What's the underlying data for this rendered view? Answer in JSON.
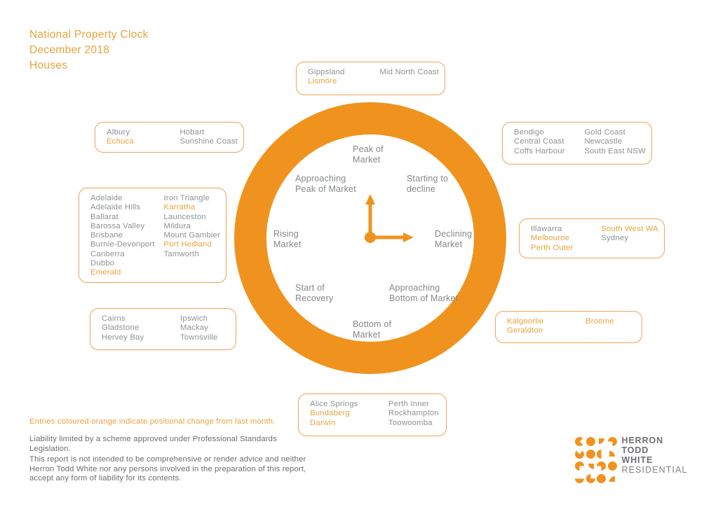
{
  "header": {
    "title": "National Property Clock",
    "subtitle": "December 2018",
    "category": "Houses"
  },
  "clock": {
    "stages": [
      {
        "id": "peak-of-market",
        "label": "Peak of\nMarket"
      },
      {
        "id": "starting-to-decline",
        "label": "Starting to\ndecline"
      },
      {
        "id": "declining-market",
        "label": "Declining\nMarket"
      },
      {
        "id": "approaching-bottom-of-market",
        "label": "Approaching\nBottom of Market"
      },
      {
        "id": "bottom-of-market",
        "label": "Bottom of\nMarket"
      },
      {
        "id": "start-of-recovery",
        "label": "Start of\nRecovery"
      },
      {
        "id": "rising-market",
        "label": "Rising\nMarket"
      },
      {
        "id": "approaching-peak-of-market",
        "label": "Approaching\nPeak of Market"
      }
    ]
  },
  "boxes": [
    {
      "stage": "peak-of-market",
      "columns": [
        [
          {
            "name": "Gippsland",
            "changed": false
          },
          {
            "name": "Lismore",
            "changed": true
          }
        ],
        [
          {
            "name": "Mid North Coast",
            "changed": false
          }
        ]
      ]
    },
    {
      "stage": "approaching-peak-of-market",
      "columns": [
        [
          {
            "name": "Albury",
            "changed": false
          },
          {
            "name": "Echuca",
            "changed": true
          }
        ],
        [
          {
            "name": "Hobart",
            "changed": false
          },
          {
            "name": "Sunshine Coast",
            "changed": false
          }
        ]
      ]
    },
    {
      "stage": "rising-market",
      "columns": [
        [
          {
            "name": "Adelaide",
            "changed": false
          },
          {
            "name": "Adelaide Hills",
            "changed": false
          },
          {
            "name": "Ballarat",
            "changed": false
          },
          {
            "name": "Barossa Valley",
            "changed": false
          },
          {
            "name": "Brisbane",
            "changed": false
          },
          {
            "name": "Burnie-Devonport",
            "changed": false
          },
          {
            "name": "Canberra",
            "changed": false
          },
          {
            "name": "Dubbo",
            "changed": false
          },
          {
            "name": "Emerald",
            "changed": true
          }
        ],
        [
          {
            "name": "Iron Triangle",
            "changed": false
          },
          {
            "name": "Karratha",
            "changed": true
          },
          {
            "name": "Launceston",
            "changed": false
          },
          {
            "name": "Mildura",
            "changed": false
          },
          {
            "name": "Mount Gambier",
            "changed": false
          },
          {
            "name": "Port Hedland",
            "changed": true
          },
          {
            "name": "Tamworth",
            "changed": false
          }
        ]
      ]
    },
    {
      "stage": "start-of-recovery",
      "columns": [
        [
          {
            "name": "Cairns",
            "changed": false
          },
          {
            "name": "Gladstone",
            "changed": false
          },
          {
            "name": "Hervey Bay",
            "changed": false
          }
        ],
        [
          {
            "name": "Ipswich",
            "changed": false
          },
          {
            "name": "Mackay",
            "changed": false
          },
          {
            "name": "Townsville",
            "changed": false
          }
        ]
      ]
    },
    {
      "stage": "starting-to-decline",
      "columns": [
        [
          {
            "name": "Bendigo",
            "changed": false
          },
          {
            "name": "Central Coast",
            "changed": false
          },
          {
            "name": "Coffs Harbour",
            "changed": false
          }
        ],
        [
          {
            "name": "Gold Coast",
            "changed": false
          },
          {
            "name": "Newcastle",
            "changed": false
          },
          {
            "name": "South East NSW",
            "changed": false
          }
        ]
      ]
    },
    {
      "stage": "declining-market",
      "columns": [
        [
          {
            "name": "Illawarra",
            "changed": false
          },
          {
            "name": "Melbourne",
            "changed": true
          },
          {
            "name": "Perth Outer",
            "changed": true
          }
        ],
        [
          {
            "name": "South West WA",
            "changed": true
          },
          {
            "name": "Sydney",
            "changed": false
          }
        ]
      ]
    },
    {
      "stage": "approaching-bottom-of-market",
      "columns": [
        [
          {
            "name": "Kalgoorlie",
            "changed": true
          },
          {
            "name": "Geraldton",
            "changed": true
          }
        ],
        [
          {
            "name": "Broome",
            "changed": true
          }
        ]
      ]
    },
    {
      "stage": "bottom-of-market",
      "columns": [
        [
          {
            "name": "Alice Springs",
            "changed": false
          },
          {
            "name": "Bundaberg",
            "changed": true
          },
          {
            "name": "Darwin",
            "changed": true
          }
        ],
        [
          {
            "name": "Perth Inner",
            "changed": false
          },
          {
            "name": "Rockhampton",
            "changed": false
          },
          {
            "name": "Toowoomba",
            "changed": false
          }
        ]
      ]
    }
  ],
  "notes": {
    "legend": "Entries coloured orange indicate positional change from last month.",
    "liability": "Liability limited by a scheme approved under Professional Standards\nLegislation.",
    "disclaimer": "This report is not intended to be comprehensive or render advice and neither\nHerron Todd White nor any persons involved in the preparation of this report,\naccept any form of liability for its contents."
  },
  "logo": {
    "line1": "HERRON",
    "line2": "TODD",
    "line3": "WHITE",
    "sub": "RESIDENTIAL"
  },
  "colors": {
    "accent_orange": "#F0931E",
    "highlight_orange": "#E8A33C",
    "box_border_orange": "#F0A355",
    "gray_text": "#8E9093"
  }
}
